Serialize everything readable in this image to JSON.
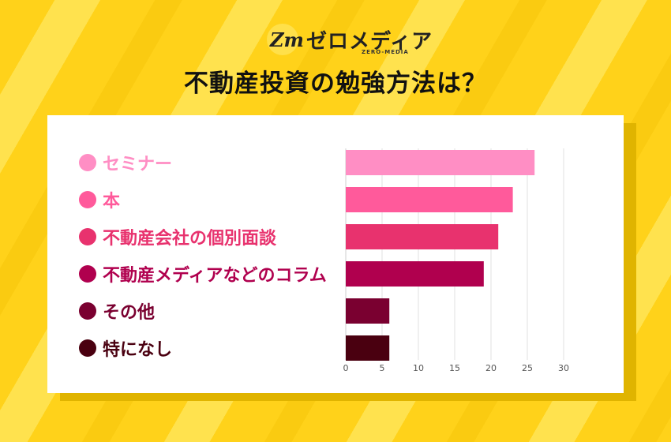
{
  "header": {
    "logo_mark": "Zm",
    "logo_text": "ゼロメディア",
    "logo_sub": "ZERO-MEDIA",
    "title": "不動産投資の勉強方法は？"
  },
  "chart_data": {
    "type": "bar",
    "orientation": "horizontal",
    "categories": [
      "セミナー",
      "本",
      "不動産会社の個別面談",
      "不動産メディアなどのコラム",
      "その他",
      "特になし"
    ],
    "values": [
      26,
      23,
      21,
      19,
      6,
      6
    ],
    "colors": [
      "#ff8ec4",
      "#ff5a9b",
      "#e8326e",
      "#b0004e",
      "#7a0030",
      "#4a0010"
    ],
    "xticks": [
      0,
      5,
      10,
      15,
      20,
      25,
      30
    ],
    "xlim": [
      0,
      30
    ],
    "grid": true,
    "legend": "left"
  }
}
